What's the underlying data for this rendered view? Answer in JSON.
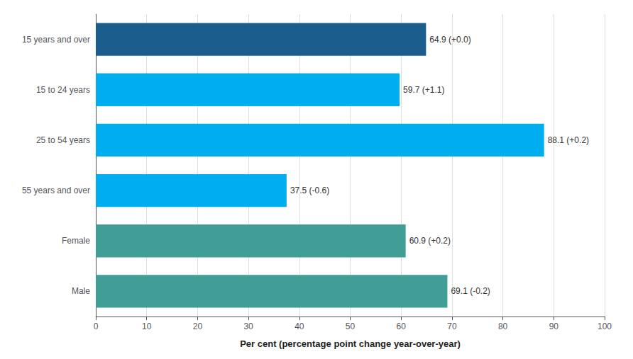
{
  "chart_data": {
    "type": "bar",
    "orientation": "horizontal",
    "xlabel": "Per cent (percentage point change year-over-year)",
    "categories": [
      "15 years and over",
      "15 to 24 years",
      "25 to 54 years",
      "55 years and over",
      "Female",
      "Male"
    ],
    "values": [
      64.9,
      59.7,
      88.1,
      37.5,
      60.9,
      69.1
    ],
    "value_labels": [
      "64.9 (+0.0)",
      "59.7 (+1.1)",
      "88.1 (+0.2)",
      "37.5 (-0.6)",
      "60.9 (+0.2)",
      "69.1 (-0.2)"
    ],
    "data_labels": true,
    "colors": [
      "#1b5e8e",
      "#00aeef",
      "#00aeef",
      "#00aeef",
      "#419e96",
      "#419e96"
    ],
    "xlim": [
      0,
      100
    ],
    "xticks": [
      0,
      10,
      20,
      30,
      40,
      50,
      60,
      70,
      80,
      90,
      100
    ],
    "grid": true
  }
}
